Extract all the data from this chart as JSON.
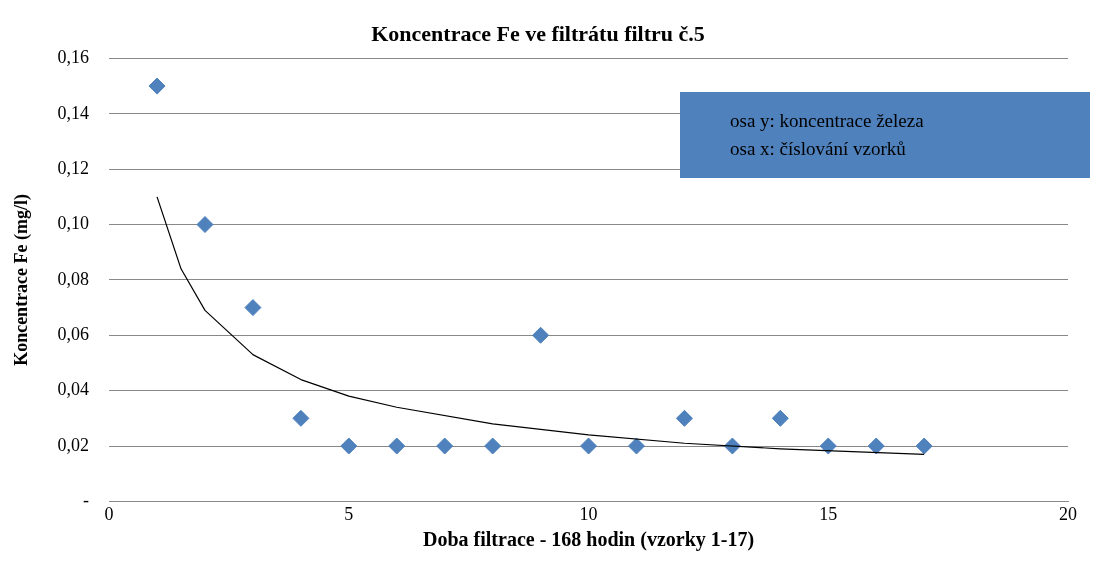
{
  "chart_data": {
    "type": "scatter",
    "title": "Koncentrace Fe ve filtrátu filtru č.5",
    "xlabel": "Doba filtrace - 168 hodin (vzorky 1-17)",
    "ylabel": "Koncentrace Fe (mg/l)",
    "series": [
      {
        "color": "#4f81bd",
        "marker": "diamond",
        "x": [
          1,
          2,
          3,
          4,
          5,
          6,
          7,
          8,
          9,
          10,
          11,
          12,
          13,
          14,
          15,
          16,
          17
        ],
        "values": [
          0.15,
          0.1,
          0.07,
          0.03,
          0.02,
          0.02,
          0.02,
          0.02,
          0.06,
          0.02,
          0.02,
          0.03,
          0.02,
          0.03,
          0.02,
          0.02,
          0.02
        ]
      },
      {
        "type": "line",
        "color": "#000000",
        "marker": "none",
        "line_style": "solid",
        "x": [
          1,
          1.5,
          2,
          3,
          4,
          5,
          6,
          8,
          10,
          12,
          14,
          17
        ],
        "values": [
          0.11,
          0.084,
          0.069,
          0.053,
          0.044,
          0.038,
          0.034,
          0.028,
          0.024,
          0.021,
          0.019,
          0.017
        ]
      }
    ],
    "xlim": [
      0,
      20
    ],
    "xticks": [
      0,
      5,
      10,
      15,
      20
    ],
    "ylim": [
      0,
      0.16
    ],
    "yticks": [
      {
        "value": 0,
        "label": "-"
      },
      {
        "value": 0.02,
        "label": "0,02"
      },
      {
        "value": 0.04,
        "label": "0,04"
      },
      {
        "value": 0.06,
        "label": "0,06"
      },
      {
        "value": 0.08,
        "label": "0,08"
      },
      {
        "value": 0.1,
        "label": "0,10"
      },
      {
        "value": 0.12,
        "label": "0,12"
      },
      {
        "value": 0.14,
        "label": "0,14"
      },
      {
        "value": 0.16,
        "label": "0,16"
      }
    ],
    "grid": "y",
    "legend": false,
    "annotations": [
      "osa y: koncentrace železa",
      "osa x: číslování vzorků"
    ]
  }
}
